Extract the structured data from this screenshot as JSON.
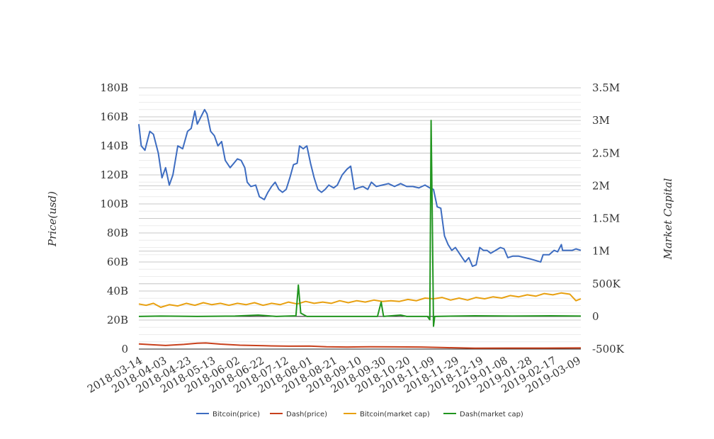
{
  "chart_data": {
    "type": "line",
    "y_left_label": "Price(usd)",
    "y_right_label": "Market Capital",
    "y_left_ticks": [
      "0",
      "20B",
      "40B",
      "60B",
      "80B",
      "100B",
      "120B",
      "140B",
      "160B",
      "180B"
    ],
    "y_right_ticks": [
      "-500K",
      "0",
      "500K",
      "1M",
      "1.5M",
      "2M",
      "2.5M",
      "3M",
      "3.5M"
    ],
    "y_left_range": [
      0,
      180000000000
    ],
    "y_right_range": [
      -500000,
      3500000
    ],
    "x_ticks": [
      "2018-03-14",
      "2018-04-03",
      "2018-04-23",
      "2018-05-13",
      "2018-06-02",
      "2018-06-22",
      "2018-07-12",
      "2018-08-01",
      "2018-08-21",
      "2018-09-10",
      "2018-09-30",
      "2018-10-20",
      "2018-11-09",
      "2018-11-29",
      "2018-12-19",
      "2019-01-08",
      "2019-01-28",
      "2019-02-17",
      "2019-03-09"
    ],
    "x_range": [
      "2018-03-14",
      "2019-03-12"
    ],
    "grid": true,
    "legend_position": "bottom",
    "series": [
      {
        "name": "Bitcoin(price)",
        "axis": "left",
        "color": "#3d6cc0",
        "points": [
          [
            "2018-03-14",
            155000000000.0
          ],
          [
            "2018-03-16",
            140000000000.0
          ],
          [
            "2018-03-19",
            137000000000.0
          ],
          [
            "2018-03-23",
            150000000000.0
          ],
          [
            "2018-03-26",
            148000000000.0
          ],
          [
            "2018-03-30",
            135000000000.0
          ],
          [
            "2018-04-02",
            118000000000.0
          ],
          [
            "2018-04-05",
            125000000000.0
          ],
          [
            "2018-04-08",
            113000000000.0
          ],
          [
            "2018-04-11",
            120000000000.0
          ],
          [
            "2018-04-15",
            140000000000.0
          ],
          [
            "2018-04-19",
            138000000000.0
          ],
          [
            "2018-04-23",
            150000000000.0
          ],
          [
            "2018-04-26",
            152000000000.0
          ],
          [
            "2018-04-29",
            164000000000.0
          ],
          [
            "2018-05-01",
            155000000000.0
          ],
          [
            "2018-05-04",
            160000000000.0
          ],
          [
            "2018-05-07",
            165000000000.0
          ],
          [
            "2018-05-09",
            162000000000.0
          ],
          [
            "2018-05-12",
            150000000000.0
          ],
          [
            "2018-05-15",
            147000000000.0
          ],
          [
            "2018-05-18",
            140000000000.0
          ],
          [
            "2018-05-21",
            143000000000.0
          ],
          [
            "2018-05-24",
            130000000000.0
          ],
          [
            "2018-05-28",
            125000000000.0
          ],
          [
            "2018-05-31",
            128000000000.0
          ],
          [
            "2018-06-03",
            131000000000.0
          ],
          [
            "2018-06-06",
            130000000000.0
          ],
          [
            "2018-06-09",
            125000000000.0
          ],
          [
            "2018-06-11",
            115000000000.0
          ],
          [
            "2018-06-14",
            112000000000.0
          ],
          [
            "2018-06-18",
            113000000000.0
          ],
          [
            "2018-06-21",
            105000000000.0
          ],
          [
            "2018-06-25",
            103000000000.0
          ],
          [
            "2018-06-28",
            108000000000.0
          ],
          [
            "2018-07-01",
            112000000000.0
          ],
          [
            "2018-07-04",
            115000000000.0
          ],
          [
            "2018-07-07",
            110000000000.0
          ],
          [
            "2018-07-10",
            108000000000.0
          ],
          [
            "2018-07-13",
            110000000000.0
          ],
          [
            "2018-07-16",
            118000000000.0
          ],
          [
            "2018-07-19",
            127000000000.0
          ],
          [
            "2018-07-22",
            128000000000.0
          ],
          [
            "2018-07-24",
            140000000000.0
          ],
          [
            "2018-07-27",
            138000000000.0
          ],
          [
            "2018-07-30",
            140000000000.0
          ],
          [
            "2018-08-02",
            128000000000.0
          ],
          [
            "2018-08-05",
            118000000000.0
          ],
          [
            "2018-08-08",
            110000000000.0
          ],
          [
            "2018-08-11",
            108000000000.0
          ],
          [
            "2018-08-14",
            110000000000.0
          ],
          [
            "2018-08-17",
            113000000000.0
          ],
          [
            "2018-08-21",
            111000000000.0
          ],
          [
            "2018-08-24",
            113000000000.0
          ],
          [
            "2018-08-28",
            120000000000.0
          ],
          [
            "2018-09-01",
            124000000000.0
          ],
          [
            "2018-09-04",
            126000000000.0
          ],
          [
            "2018-09-07",
            110000000000.0
          ],
          [
            "2018-09-10",
            111000000000.0
          ],
          [
            "2018-09-14",
            112000000000.0
          ],
          [
            "2018-09-18",
            110000000000.0
          ],
          [
            "2018-09-21",
            115000000000.0
          ],
          [
            "2018-09-25",
            112000000000.0
          ],
          [
            "2018-09-30",
            113000000000.0
          ],
          [
            "2018-10-05",
            114000000000.0
          ],
          [
            "2018-10-10",
            112000000000.0
          ],
          [
            "2018-10-15",
            114000000000.0
          ],
          [
            "2018-10-20",
            112000000000.0
          ],
          [
            "2018-10-25",
            112000000000.0
          ],
          [
            "2018-10-30",
            111000000000.0
          ],
          [
            "2018-11-04",
            113000000000.0
          ],
          [
            "2018-11-08",
            111000000000.0
          ],
          [
            "2018-11-11",
            110000000000.0
          ],
          [
            "2018-11-14",
            98000000000.0
          ],
          [
            "2018-11-17",
            97000000000.0
          ],
          [
            "2018-11-20",
            78000000000.0
          ],
          [
            "2018-11-23",
            72000000000.0
          ],
          [
            "2018-11-26",
            68000000000.0
          ],
          [
            "2018-11-29",
            70000000000.0
          ],
          [
            "2018-12-03",
            65000000000.0
          ],
          [
            "2018-12-07",
            60000000000.0
          ],
          [
            "2018-12-10",
            63000000000.0
          ],
          [
            "2018-12-13",
            57000000000.0
          ],
          [
            "2018-12-16",
            58000000000.0
          ],
          [
            "2018-12-19",
            70000000000.0
          ],
          [
            "2018-12-22",
            68000000000.0
          ],
          [
            "2018-12-25",
            68000000000.0
          ],
          [
            "2018-12-28",
            66000000000.0
          ],
          [
            "2019-01-01",
            68000000000.0
          ],
          [
            "2019-01-05",
            70000000000.0
          ],
          [
            "2019-01-08",
            69000000000.0
          ],
          [
            "2019-01-11",
            63000000000.0
          ],
          [
            "2019-01-15",
            64000000000.0
          ],
          [
            "2019-01-20",
            64000000000.0
          ],
          [
            "2019-01-25",
            63000000000.0
          ],
          [
            "2019-01-30",
            62000000000.0
          ],
          [
            "2019-02-03",
            61000000000.0
          ],
          [
            "2019-02-07",
            60000000000.0
          ],
          [
            "2019-02-09",
            65000000000.0
          ],
          [
            "2019-02-14",
            65000000000.0
          ],
          [
            "2019-02-18",
            68000000000.0
          ],
          [
            "2019-02-21",
            67000000000.0
          ],
          [
            "2019-02-24",
            72000000000.0
          ],
          [
            "2019-02-25",
            68000000000.0
          ],
          [
            "2019-03-01",
            68000000000.0
          ],
          [
            "2019-03-05",
            68000000000.0
          ],
          [
            "2019-03-08",
            69000000000.0
          ],
          [
            "2019-03-12",
            68000000000.0
          ]
        ]
      },
      {
        "name": "Dash(price)",
        "axis": "left",
        "color": "#c8401c",
        "points": [
          [
            "2018-03-14",
            3500000000.0
          ],
          [
            "2018-03-25",
            3000000000.0
          ],
          [
            "2018-04-05",
            2500000000.0
          ],
          [
            "2018-04-20",
            3200000000.0
          ],
          [
            "2018-05-01",
            4000000000.0
          ],
          [
            "2018-05-08",
            4200000000.0
          ],
          [
            "2018-05-20",
            3400000000.0
          ],
          [
            "2018-06-05",
            2700000000.0
          ],
          [
            "2018-06-25",
            2300000000.0
          ],
          [
            "2018-07-15",
            2000000000.0
          ],
          [
            "2018-08-01",
            2100000000.0
          ],
          [
            "2018-08-15",
            1600000000.0
          ],
          [
            "2018-09-01",
            1400000000.0
          ],
          [
            "2018-09-20",
            1600000000.0
          ],
          [
            "2018-10-10",
            1500000000.0
          ],
          [
            "2018-11-01",
            1400000000.0
          ],
          [
            "2018-11-20",
            1000000000.0
          ],
          [
            "2018-12-15",
            600000000.0
          ],
          [
            "2019-01-10",
            700000000.0
          ],
          [
            "2019-02-10",
            700000000.0
          ],
          [
            "2019-03-12",
            800000000.0
          ]
        ]
      },
      {
        "name": "Bitcoin(market cap)",
        "axis": "right",
        "color": "#e8a010",
        "points": [
          [
            "2018-03-14",
            190000
          ],
          [
            "2018-03-20",
            170000
          ],
          [
            "2018-03-26",
            200000
          ],
          [
            "2018-04-01",
            140000
          ],
          [
            "2018-04-08",
            180000
          ],
          [
            "2018-04-15",
            160000
          ],
          [
            "2018-04-22",
            200000
          ],
          [
            "2018-04-29",
            170000
          ],
          [
            "2018-05-06",
            210000
          ],
          [
            "2018-05-13",
            180000
          ],
          [
            "2018-05-20",
            200000
          ],
          [
            "2018-05-27",
            170000
          ],
          [
            "2018-06-03",
            200000
          ],
          [
            "2018-06-10",
            180000
          ],
          [
            "2018-06-17",
            210000
          ],
          [
            "2018-06-24",
            170000
          ],
          [
            "2018-07-01",
            200000
          ],
          [
            "2018-07-08",
            180000
          ],
          [
            "2018-07-15",
            220000
          ],
          [
            "2018-07-22",
            190000
          ],
          [
            "2018-07-29",
            230000
          ],
          [
            "2018-08-05",
            200000
          ],
          [
            "2018-08-12",
            220000
          ],
          [
            "2018-08-19",
            200000
          ],
          [
            "2018-08-26",
            240000
          ],
          [
            "2018-09-02",
            210000
          ],
          [
            "2018-09-09",
            240000
          ],
          [
            "2018-09-16",
            220000
          ],
          [
            "2018-09-23",
            250000
          ],
          [
            "2018-09-30",
            230000
          ],
          [
            "2018-10-07",
            240000
          ],
          [
            "2018-10-14",
            230000
          ],
          [
            "2018-10-21",
            260000
          ],
          [
            "2018-10-28",
            240000
          ],
          [
            "2018-11-04",
            280000
          ],
          [
            "2018-11-11",
            270000
          ],
          [
            "2018-11-18",
            290000
          ],
          [
            "2018-11-25",
            250000
          ],
          [
            "2018-12-02",
            280000
          ],
          [
            "2018-12-09",
            250000
          ],
          [
            "2018-12-16",
            290000
          ],
          [
            "2018-12-23",
            270000
          ],
          [
            "2018-12-30",
            300000
          ],
          [
            "2019-01-06",
            280000
          ],
          [
            "2019-01-13",
            320000
          ],
          [
            "2019-01-20",
            300000
          ],
          [
            "2019-01-27",
            330000
          ],
          [
            "2019-02-03",
            310000
          ],
          [
            "2019-02-10",
            350000
          ],
          [
            "2019-02-17",
            330000
          ],
          [
            "2019-02-24",
            360000
          ],
          [
            "2019-03-03",
            340000
          ],
          [
            "2019-03-08",
            240000
          ],
          [
            "2019-03-12",
            270000
          ]
        ]
      },
      {
        "name": "Dash(market cap)",
        "axis": "right",
        "color": "#21951f",
        "points": [
          [
            "2018-03-14",
            0
          ],
          [
            "2018-04-01",
            5000
          ],
          [
            "2018-05-01",
            0
          ],
          [
            "2018-06-01",
            5000
          ],
          [
            "2018-06-20",
            20000
          ],
          [
            "2018-07-05",
            0
          ],
          [
            "2018-07-21",
            10000
          ],
          [
            "2018-07-23",
            480000
          ],
          [
            "2018-07-25",
            50000
          ],
          [
            "2018-07-30",
            0
          ],
          [
            "2018-08-15",
            0
          ],
          [
            "2018-09-26",
            0
          ],
          [
            "2018-09-29",
            220000
          ],
          [
            "2018-10-01",
            0
          ],
          [
            "2018-10-15",
            20000
          ],
          [
            "2018-10-20",
            0
          ],
          [
            "2018-11-06",
            0
          ],
          [
            "2018-11-08",
            -50000
          ],
          [
            "2018-11-09",
            3000000
          ],
          [
            "2018-11-10",
            1500000
          ],
          [
            "2018-11-11",
            -150000
          ],
          [
            "2018-11-12",
            0
          ],
          [
            "2018-12-15",
            10000
          ],
          [
            "2019-01-15",
            5000
          ],
          [
            "2019-02-15",
            10000
          ],
          [
            "2019-03-12",
            5000
          ]
        ]
      }
    ]
  }
}
